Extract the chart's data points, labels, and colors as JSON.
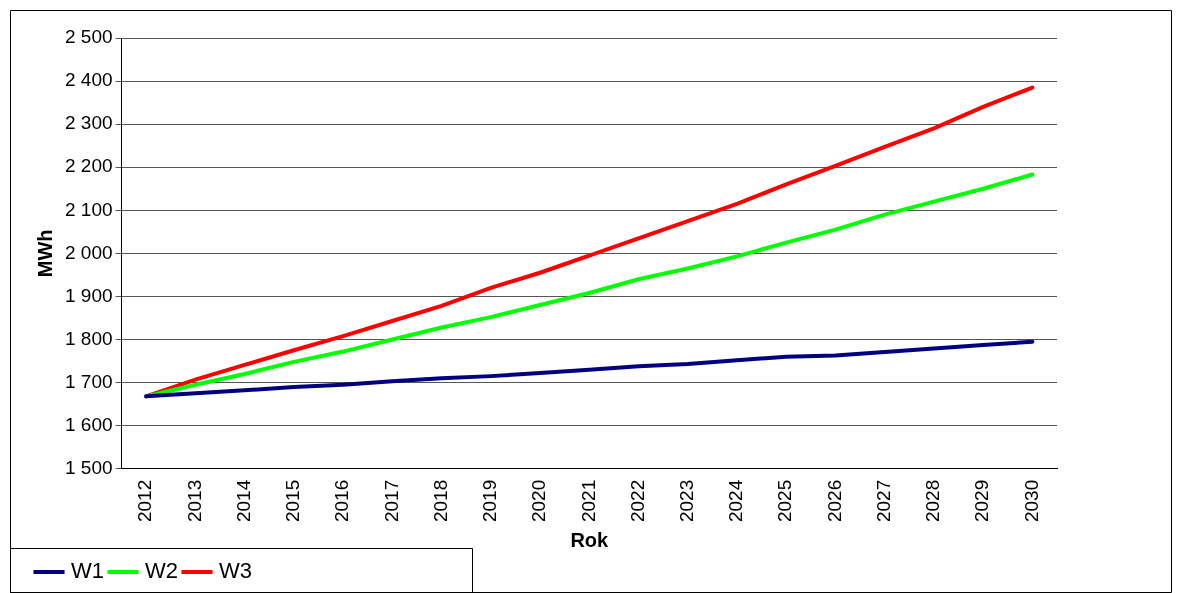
{
  "chart_data": {
    "type": "line",
    "xlabel": "Rok",
    "ylabel": "MWh",
    "categories": [
      "2012",
      "2013",
      "2014",
      "2015",
      "2016",
      "2017",
      "2018",
      "2019",
      "2020",
      "2021",
      "2022",
      "2023",
      "2024",
      "2025",
      "2026",
      "2027",
      "2028",
      "2029",
      "2030"
    ],
    "series": [
      {
        "name": "W1",
        "color": "#000080",
        "values": [
          1668,
          1675,
          1682,
          1690,
          1695,
          1703,
          1710,
          1715,
          1722,
          1730,
          1738,
          1743,
          1752,
          1760,
          1763,
          1771,
          1779,
          1787,
          1795
        ]
      },
      {
        "name": "W2",
        "color": "#00ff00",
        "values": [
          1668,
          1695,
          1720,
          1748,
          1772,
          1800,
          1828,
          1852,
          1880,
          1908,
          1940,
          1965,
          1993,
          2025,
          2055,
          2090,
          2120,
          2150,
          2183
        ]
      },
      {
        "name": "W3",
        "color": "#ff0000",
        "values": [
          1668,
          1707,
          1741,
          1775,
          1808,
          1843,
          1878,
          1920,
          1955,
          1995,
          2035,
          2075,
          2115,
          2160,
          2203,
          2247,
          2290,
          2340,
          2385
        ]
      }
    ],
    "ylim": [
      1500,
      2500
    ],
    "yticks": [
      {
        "value": 1500,
        "label": "1 500"
      },
      {
        "value": 1600,
        "label": "1 600"
      },
      {
        "value": 1700,
        "label": "1 700"
      },
      {
        "value": 1800,
        "label": "1 800"
      },
      {
        "value": 1900,
        "label": "1 900"
      },
      {
        "value": 2000,
        "label": "2 000"
      },
      {
        "value": 2100,
        "label": "2 100"
      },
      {
        "value": 2200,
        "label": "2 200"
      },
      {
        "value": 2300,
        "label": "2 300"
      },
      {
        "value": 2400,
        "label": "2 400"
      },
      {
        "value": 2500,
        "label": "2 500"
      }
    ],
    "grid": "y",
    "legend": "bottom left",
    "marker": "none",
    "line_style": "solid"
  }
}
